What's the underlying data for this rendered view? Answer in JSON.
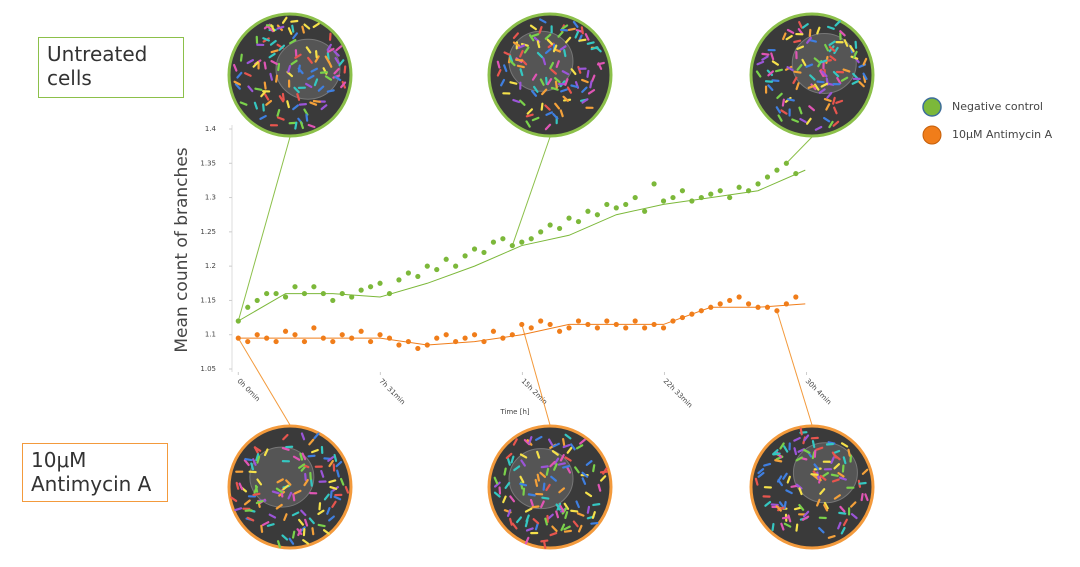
{
  "chart_data": {
    "type": "scatter",
    "y_label": "Mean count of branches",
    "x_label": "Time [h]",
    "xlim": [
      -20,
      1815
    ],
    "ylim": [
      1.05,
      1.4
    ],
    "xticks": [
      {
        "value": 0,
        "label": "0h 0min"
      },
      {
        "value": 451,
        "label": "7h 31min"
      },
      {
        "value": 902,
        "label": "15h 2min"
      },
      {
        "value": 1353,
        "label": "22h 33min"
      },
      {
        "value": 1804,
        "label": "30h 4min"
      }
    ],
    "yticks": [
      1.05,
      1.1,
      1.15,
      1.2,
      1.25,
      1.3,
      1.35,
      1.4
    ],
    "x": [
      0,
      30,
      60,
      90,
      120,
      150,
      180,
      210,
      240,
      270,
      300,
      330,
      360,
      390,
      420,
      450,
      480,
      510,
      540,
      570,
      600,
      630,
      660,
      690,
      720,
      750,
      780,
      810,
      840,
      870,
      900,
      930,
      960,
      990,
      1020,
      1050,
      1080,
      1110,
      1140,
      1170,
      1200,
      1230,
      1260,
      1290,
      1320,
      1350,
      1380,
      1410,
      1440,
      1470,
      1500,
      1530,
      1560,
      1590,
      1620,
      1650,
      1680,
      1710,
      1740,
      1770
    ],
    "trend_x": [
      0,
      150,
      300,
      450,
      600,
      750,
      900,
      1050,
      1200,
      1350,
      1500,
      1650,
      1800
    ],
    "series": [
      {
        "name": "Negative control",
        "color": "#7cb83a",
        "values": [
          1.12,
          1.14,
          1.15,
          1.16,
          1.16,
          1.155,
          1.17,
          1.16,
          1.17,
          1.16,
          1.15,
          1.16,
          1.155,
          1.165,
          1.17,
          1.175,
          1.16,
          1.18,
          1.19,
          1.185,
          1.2,
          1.195,
          1.21,
          1.2,
          1.215,
          1.225,
          1.22,
          1.235,
          1.24,
          1.23,
          1.235,
          1.24,
          1.25,
          1.26,
          1.255,
          1.27,
          1.265,
          1.28,
          1.275,
          1.29,
          1.285,
          1.29,
          1.3,
          1.28,
          1.32,
          1.295,
          1.3,
          1.31,
          1.295,
          1.3,
          1.305,
          1.31,
          1.3,
          1.315,
          1.31,
          1.32,
          1.33,
          1.34,
          1.35,
          1.335
        ],
        "trend": [
          1.12,
          1.16,
          1.16,
          1.155,
          1.175,
          1.2,
          1.23,
          1.245,
          1.275,
          1.29,
          1.3,
          1.31,
          1.34
        ]
      },
      {
        "name": "10μM Antimycin A",
        "color": "#f07d1a",
        "values": [
          1.095,
          1.09,
          1.1,
          1.095,
          1.09,
          1.105,
          1.1,
          1.09,
          1.11,
          1.095,
          1.09,
          1.1,
          1.095,
          1.105,
          1.09,
          1.1,
          1.095,
          1.085,
          1.09,
          1.08,
          1.085,
          1.095,
          1.1,
          1.09,
          1.095,
          1.1,
          1.09,
          1.105,
          1.095,
          1.1,
          1.115,
          1.11,
          1.12,
          1.115,
          1.105,
          1.11,
          1.12,
          1.115,
          1.11,
          1.12,
          1.115,
          1.11,
          1.12,
          1.11,
          1.115,
          1.11,
          1.12,
          1.125,
          1.13,
          1.135,
          1.14,
          1.145,
          1.15,
          1.155,
          1.145,
          1.14,
          1.14,
          1.135,
          1.145,
          1.155
        ],
        "trend": [
          1.095,
          1.095,
          1.095,
          1.095,
          1.085,
          1.09,
          1.1,
          1.115,
          1.115,
          1.115,
          1.14,
          1.14,
          1.145
        ]
      }
    ],
    "annotations": [
      "Untreated cells",
      "10μM Antimycin A"
    ]
  }
}
